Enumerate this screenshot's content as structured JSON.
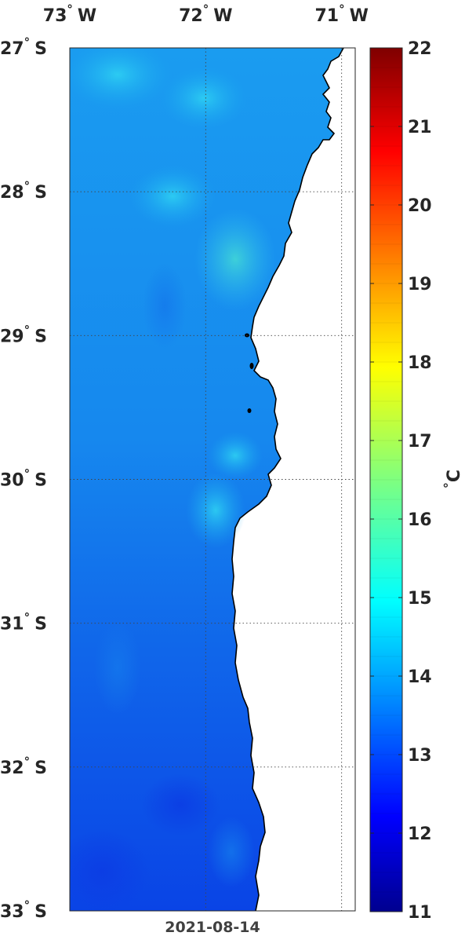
{
  "map": {
    "longitude_labels": [
      {
        "deg": "73",
        "hem": "W"
      },
      {
        "deg": "72",
        "hem": "W"
      },
      {
        "deg": "71",
        "hem": "W"
      }
    ],
    "latitude_labels": [
      {
        "deg": "27",
        "hem": "S"
      },
      {
        "deg": "28",
        "hem": "S"
      },
      {
        "deg": "29",
        "hem": "S"
      },
      {
        "deg": "30",
        "hem": "S"
      },
      {
        "deg": "31",
        "hem": "S"
      },
      {
        "deg": "32",
        "hem": "S"
      },
      {
        "deg": "33",
        "hem": "S"
      }
    ],
    "degree_symbol": "°",
    "date": "2021-08-14",
    "lon_range": [
      -73.0,
      -70.9
    ],
    "lat_range": [
      -33.0,
      -27.0
    ],
    "grid": true,
    "land_color": "#ffffff",
    "coast_color": "#000000"
  },
  "colorbar": {
    "min": 11,
    "max": 22,
    "ticks": [
      "22",
      "21",
      "20",
      "19",
      "18",
      "17",
      "16",
      "15",
      "14",
      "13",
      "12",
      "11"
    ],
    "unit_deg": "°",
    "unit_letter": "C",
    "colormap": "jet",
    "placement": "right"
  }
}
